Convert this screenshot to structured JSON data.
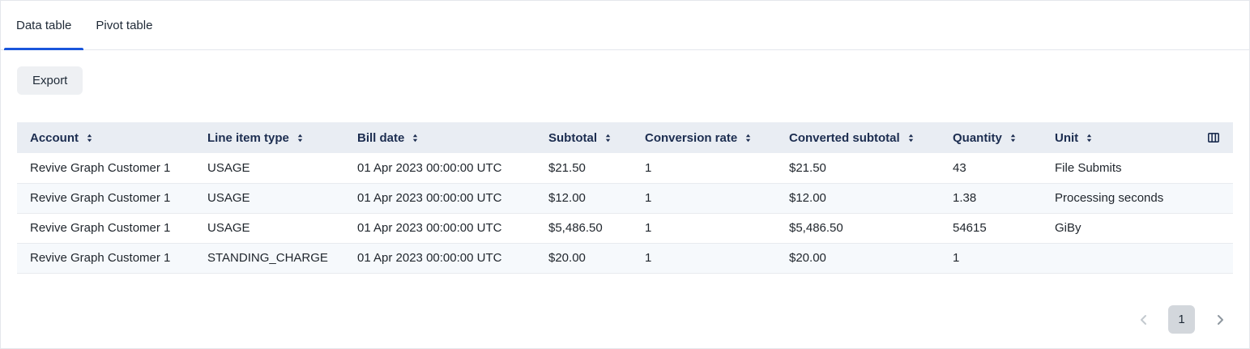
{
  "tabs": [
    {
      "label": "Data table",
      "active": true
    },
    {
      "label": "Pivot table",
      "active": false
    }
  ],
  "toolbar": {
    "export_label": "Export"
  },
  "table": {
    "columns": [
      {
        "label": "Account",
        "key": "account",
        "sortable": true
      },
      {
        "label": "Line item type",
        "key": "line-item-type",
        "sortable": true
      },
      {
        "label": "Bill date",
        "key": "bill-date",
        "sortable": true
      },
      {
        "label": "Subtotal",
        "key": "subtotal",
        "sortable": true
      },
      {
        "label": "Conversion rate",
        "key": "conversion-rate",
        "sortable": true
      },
      {
        "label": "Converted subtotal",
        "key": "converted-subtotal",
        "sortable": true
      },
      {
        "label": "Quantity",
        "key": "quantity",
        "sortable": true
      },
      {
        "label": "Unit",
        "key": "unit",
        "sortable": true
      },
      {
        "label": "",
        "key": "column-settings",
        "sortable": false,
        "icon": "columns-icon"
      }
    ],
    "rows": [
      [
        "Revive Graph Customer 1",
        "USAGE",
        "01 Apr 2023 00:00:00 UTC",
        "$21.50",
        "1",
        "$21.50",
        "43",
        "File Submits",
        ""
      ],
      [
        "Revive Graph Customer 1",
        "USAGE",
        "01 Apr 2023 00:00:00 UTC",
        "$12.00",
        "1",
        "$12.00",
        "1.38",
        "Processing seconds",
        ""
      ],
      [
        "Revive Graph Customer 1",
        "USAGE",
        "01 Apr 2023 00:00:00 UTC",
        "$5,486.50",
        "1",
        "$5,486.50",
        "54615",
        "GiBy",
        ""
      ],
      [
        "Revive Graph Customer 1",
        "STANDING_CHARGE",
        "01 Apr 2023 00:00:00 UTC",
        "$20.00",
        "1",
        "$20.00",
        "1",
        "",
        ""
      ]
    ]
  },
  "pagination": {
    "current_page": "1"
  },
  "icons": {
    "sort": "sort-arrows-icon",
    "column_settings": "columns-icon",
    "prev": "chevron-left-icon",
    "next": "chevron-right-icon"
  },
  "colors": {
    "accent": "#1a56db",
    "header_bg": "#e9edf3",
    "header_text": "#1c2d50",
    "row_alt_bg": "#f6f9fc",
    "current_page_bg": "#d3d7dc"
  }
}
